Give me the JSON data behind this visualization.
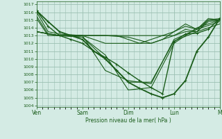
{
  "background_color": "#d4ebe4",
  "grid_color": "#9bbfb2",
  "line_color": "#1a5c1a",
  "ylabel_values": [
    1004,
    1005,
    1006,
    1007,
    1008,
    1009,
    1010,
    1011,
    1012,
    1013,
    1014,
    1015,
    1016,
    1017
  ],
  "ylim": [
    1003.8,
    1017.4
  ],
  "xlabel": "Pression niveau de la mer( hPa )",
  "xtick_labels": [
    "Ven",
    "Sam",
    "Dim",
    "Lun",
    "M"
  ],
  "xtick_positions": [
    0,
    24,
    48,
    72,
    96
  ],
  "lines": [
    {
      "x": [
        0,
        6,
        12,
        18,
        24,
        30,
        36,
        42,
        48,
        54,
        60,
        66,
        72,
        78,
        84,
        90,
        96
      ],
      "y": [
        1016.0,
        1013.5,
        1013.2,
        1013.1,
        1013.0,
        1013.0,
        1013.0,
        1013.0,
        1013.0,
        1013.0,
        1013.0,
        1013.0,
        1013.0,
        1013.5,
        1013.5,
        1015.0,
        1015.2
      ],
      "lw": 0.8,
      "marker": null,
      "ls": "-"
    },
    {
      "x": [
        0,
        6,
        12,
        18,
        24,
        30,
        36,
        42,
        48,
        54,
        60,
        66,
        72,
        78,
        84,
        90,
        96
      ],
      "y": [
        1015.5,
        1013.2,
        1013.0,
        1013.0,
        1013.0,
        1012.5,
        1012.0,
        1012.0,
        1012.0,
        1012.0,
        1012.0,
        1012.5,
        1013.5,
        1014.2,
        1013.8,
        1015.0,
        1015.0
      ],
      "lw": 0.8,
      "marker": null,
      "ls": "-"
    },
    {
      "x": [
        0,
        6,
        12,
        18,
        24,
        30,
        36,
        42,
        48,
        54,
        60,
        66,
        72,
        78,
        84,
        90,
        96
      ],
      "y": [
        1015.2,
        1013.0,
        1013.0,
        1013.0,
        1013.0,
        1013.0,
        1013.0,
        1013.0,
        1012.5,
        1012.0,
        1012.5,
        1013.0,
        1013.5,
        1014.5,
        1013.8,
        1015.2,
        1015.0
      ],
      "lw": 0.8,
      "marker": null,
      "ls": "-"
    },
    {
      "x": [
        0,
        6,
        12,
        18,
        24,
        36,
        48,
        60,
        66,
        72,
        78,
        84,
        90,
        96
      ],
      "y": [
        1013.5,
        1013.2,
        1013.0,
        1013.0,
        1013.0,
        1013.0,
        1012.8,
        1012.0,
        1012.5,
        1013.0,
        1013.8,
        1013.5,
        1014.8,
        1015.0
      ],
      "lw": 0.8,
      "marker": null,
      "ls": "-"
    },
    {
      "x": [
        0,
        12,
        24,
        36,
        48,
        60,
        72,
        84,
        96
      ],
      "y": [
        1013.5,
        1013.0,
        1013.0,
        1008.5,
        1007.2,
        1006.8,
        1012.5,
        1013.8,
        1014.8
      ],
      "lw": 0.8,
      "marker": null,
      "ls": "-"
    },
    {
      "x": [
        0,
        12,
        24,
        36,
        48,
        60,
        72,
        84,
        96
      ],
      "y": [
        1013.5,
        1013.0,
        1012.8,
        1010.0,
        1007.0,
        1007.0,
        1012.3,
        1013.5,
        1014.5
      ],
      "lw": 0.8,
      "marker": null,
      "ls": "-"
    },
    {
      "x": [
        0,
        12,
        24,
        36,
        48,
        60,
        72,
        84,
        96
      ],
      "y": [
        1013.5,
        1013.0,
        1012.8,
        1010.5,
        1006.0,
        1006.3,
        1012.0,
        1014.0,
        1015.0
      ],
      "lw": 0.8,
      "marker": null,
      "ls": "-"
    },
    {
      "x": [
        0,
        6,
        12,
        18,
        24,
        30,
        36,
        42,
        48,
        54,
        60,
        66,
        72,
        78,
        84,
        90,
        96
      ],
      "y": [
        1016.2,
        1014.2,
        1013.0,
        1012.5,
        1012.0,
        1011.0,
        1010.2,
        1009.3,
        1008.2,
        1007.2,
        1006.3,
        1005.5,
        1012.2,
        1013.2,
        1013.3,
        1013.8,
        1015.2
      ],
      "lw": 1.0,
      "marker": "+",
      "ls": "-",
      "markersize": 3
    },
    {
      "x": [
        0,
        6,
        12,
        18,
        24,
        30,
        36,
        42,
        48,
        54,
        60,
        66,
        72,
        78,
        84,
        90,
        96
      ],
      "y": [
        1016.2,
        1014.8,
        1013.5,
        1013.0,
        1012.5,
        1011.0,
        1010.0,
        1008.5,
        1007.0,
        1006.2,
        1005.5,
        1005.0,
        1005.5,
        1007.2,
        1011.0,
        1012.8,
        1015.2
      ],
      "lw": 1.3,
      "marker": "+",
      "ls": "-",
      "markersize": 3.5
    }
  ]
}
